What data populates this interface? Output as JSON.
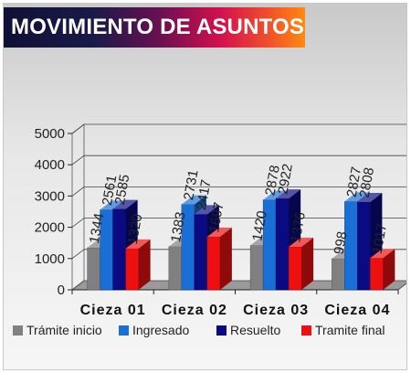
{
  "title": "MOVIMIENTO DE ASUNTOS",
  "colors": {
    "tramite_inicio": "#808080",
    "ingresado": "#1a6fd6",
    "resuelto": "#0a0a82",
    "tramite_final": "#ee1010"
  },
  "chart_data": {
    "type": "bar",
    "title": "",
    "xlabel": "",
    "ylabel": "",
    "categories": [
      "Cieza 01",
      "Cieza 02",
      "Cieza 03",
      "Cieza 04"
    ],
    "ylim": [
      0,
      5000
    ],
    "yticks": [
      0,
      1000,
      2000,
      3000,
      4000,
      5000
    ],
    "grid": true,
    "legend": "bottom",
    "style": "3d-clustered-column",
    "series": [
      {
        "name": "Trámite inicio",
        "values": [
          1344,
          1383,
          1420,
          998
        ]
      },
      {
        "name": "Ingresado",
        "values": [
          2561,
          2731,
          2878,
          2827
        ]
      },
      {
        "name": "Resuelto",
        "values": [
          2585,
          2417,
          2922,
          2808
        ]
      },
      {
        "name": "Tramite final",
        "values": [
          1320,
          1697,
          1376,
          1017
        ]
      }
    ]
  }
}
